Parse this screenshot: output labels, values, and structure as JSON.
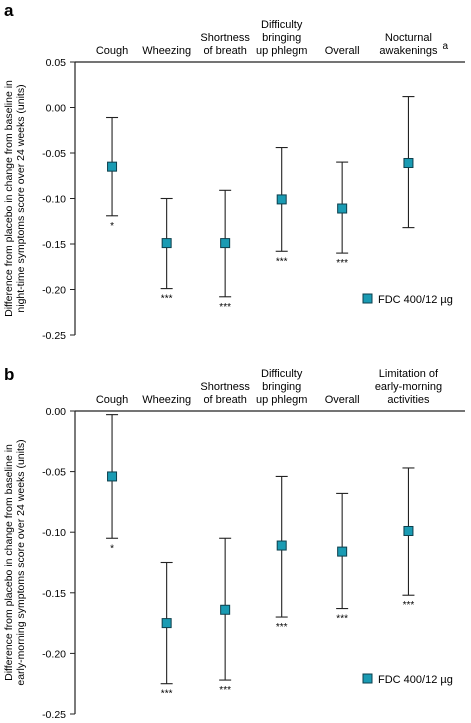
{
  "chart_data": [
    {
      "type": "scatter",
      "panel_label": "a",
      "ylabel": "Difference from placebo in change from baseline in night-time symptoms score over 24 weeks (units)",
      "ylabel_lines": [
        "Difference from placebo in change from baseline in",
        "night-time symptoms score over 24 weeks (units)"
      ],
      "ylim": [
        -0.25,
        0.05
      ],
      "yticks": [
        "0.05",
        "0.00",
        "-0.05",
        "-0.10",
        "-0.15",
        "-0.20",
        "-0.25"
      ],
      "categories": [
        "Cough",
        "Wheezing",
        "Shortness of breath",
        "Difficulty bringing up phlegm",
        "Overall",
        "Nocturnal awakenings"
      ],
      "category_lines": [
        [
          "Cough"
        ],
        [
          "Wheezing"
        ],
        [
          "Shortness",
          "of breath"
        ],
        [
          "Difficulty",
          "bringing",
          "up phlegm"
        ],
        [
          "Overall"
        ],
        [
          "Nocturnal",
          "awakenings"
        ]
      ],
      "category_superscripts": [
        "",
        "",
        "",
        "",
        "",
        "a"
      ],
      "legend": "top-right",
      "series": [
        {
          "name": "FDC 400/12 µg",
          "color": "#1a9bb3",
          "marker": "square",
          "values": [
            -0.065,
            -0.149,
            -0.149,
            -0.101,
            -0.111,
            -0.061
          ],
          "lower": [
            -0.119,
            -0.199,
            -0.208,
            -0.158,
            -0.16,
            -0.132
          ],
          "upper": [
            -0.011,
            -0.1,
            -0.091,
            -0.044,
            -0.06,
            0.012
          ],
          "significance": [
            "*",
            "***",
            "***",
            "***",
            "***",
            ""
          ]
        }
      ]
    },
    {
      "type": "scatter",
      "panel_label": "b",
      "ylabel": "Difference from placebo in change from baseline in early-morning symptoms score over 24 weeks (units)",
      "ylabel_lines": [
        "Difference from placebo in change from baseline in",
        "early-morning symptoms score over 24 weeks (units)"
      ],
      "ylim": [
        -0.25,
        0.0
      ],
      "yticks": [
        "0.00",
        "-0.05",
        "-0.10",
        "-0.15",
        "-0.20",
        "-0.25"
      ],
      "categories": [
        "Cough",
        "Wheezing",
        "Shortness of breath",
        "Difficulty bringing up phlegm",
        "Overall",
        "Limitation of early-morning activities"
      ],
      "category_lines": [
        [
          "Cough"
        ],
        [
          "Wheezing"
        ],
        [
          "Shortness",
          "of breath"
        ],
        [
          "Difficulty",
          "bringing",
          "up phlegm"
        ],
        [
          "Overall"
        ],
        [
          "Limitation of",
          "early-morning",
          "activities"
        ]
      ],
      "category_superscripts": [
        "",
        "",
        "",
        "",
        "",
        ""
      ],
      "legend": "bottom-right",
      "series": [
        {
          "name": "FDC 400/12 µg",
          "color": "#1a9bb3",
          "marker": "square",
          "values": [
            -0.054,
            -0.175,
            -0.164,
            -0.111,
            -0.116,
            -0.099
          ],
          "lower": [
            -0.105,
            -0.225,
            -0.222,
            -0.17,
            -0.163,
            -0.152
          ],
          "upper": [
            -0.003,
            -0.125,
            -0.105,
            -0.054,
            -0.068,
            -0.047
          ],
          "significance": [
            "*",
            "***",
            "***",
            "***",
            "***",
            "***"
          ]
        }
      ]
    }
  ]
}
